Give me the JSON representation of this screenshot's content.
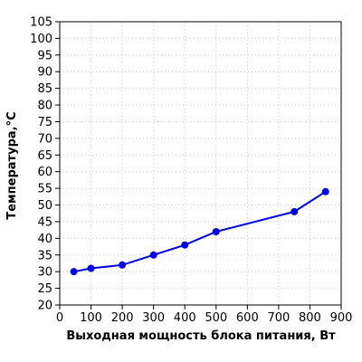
{
  "chart_data": {
    "type": "line",
    "xlabel": "Выходная мощность блока питания, Вт",
    "ylabel": "Температура,°С",
    "xlim": [
      0,
      900
    ],
    "ylim": [
      20,
      105
    ],
    "x_ticks": [
      0,
      100,
      200,
      300,
      400,
      500,
      600,
      700,
      800,
      900
    ],
    "y_ticks": [
      20,
      25,
      30,
      35,
      40,
      45,
      50,
      55,
      60,
      65,
      70,
      75,
      80,
      85,
      90,
      95,
      100,
      105
    ],
    "grid": true,
    "series": [
      {
        "color": "#0000e6",
        "x": [
          45,
          100,
          200,
          300,
          400,
          500,
          750,
          850
        ],
        "y": [
          30,
          31,
          32,
          35,
          38,
          42,
          48,
          54
        ]
      }
    ]
  }
}
